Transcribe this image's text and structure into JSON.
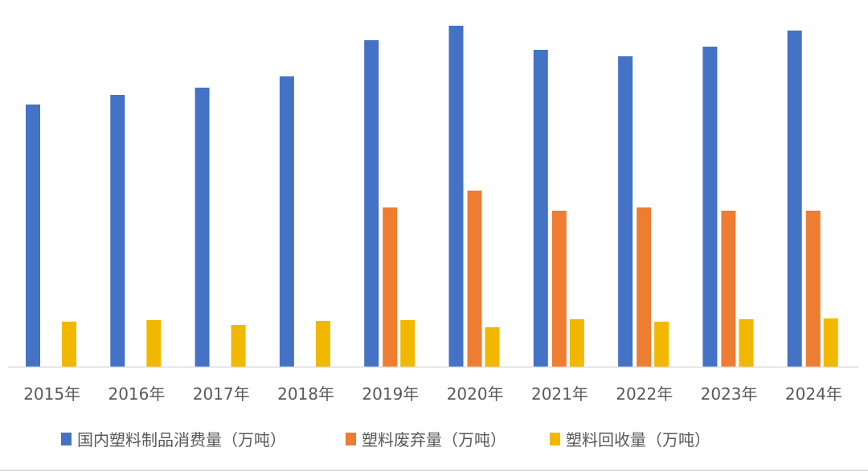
{
  "chart_data": {
    "type": "bar",
    "title": "",
    "xlabel": "",
    "ylabel": "",
    "note": "No y-axis shown; values are relative estimates read from bar heights",
    "categories": [
      "2015年",
      "2016年",
      "2017年",
      "2018年",
      "2019年",
      "2020年",
      "2021年",
      "2022年",
      "2023年",
      "2024年"
    ],
    "series": [
      {
        "name": "国内塑料制品消费量（万吨）",
        "color": "#4472C4",
        "values": [
          326,
          338,
          347,
          361,
          406,
          424,
          394,
          386,
          398,
          418
        ]
      },
      {
        "name": "塑料废弃量（万吨）",
        "color": "#ED7D31",
        "values": [
          0,
          0,
          0,
          0,
          198,
          219,
          194,
          198,
          194,
          194
        ]
      },
      {
        "name": "塑料回收量（万吨）",
        "color": "#F2B800",
        "values": [
          56,
          58,
          52,
          57,
          58,
          49,
          59,
          56,
          59,
          60
        ]
      }
    ],
    "ylim": [
      0,
      456
    ],
    "grid": false,
    "legend_position": "bottom"
  }
}
